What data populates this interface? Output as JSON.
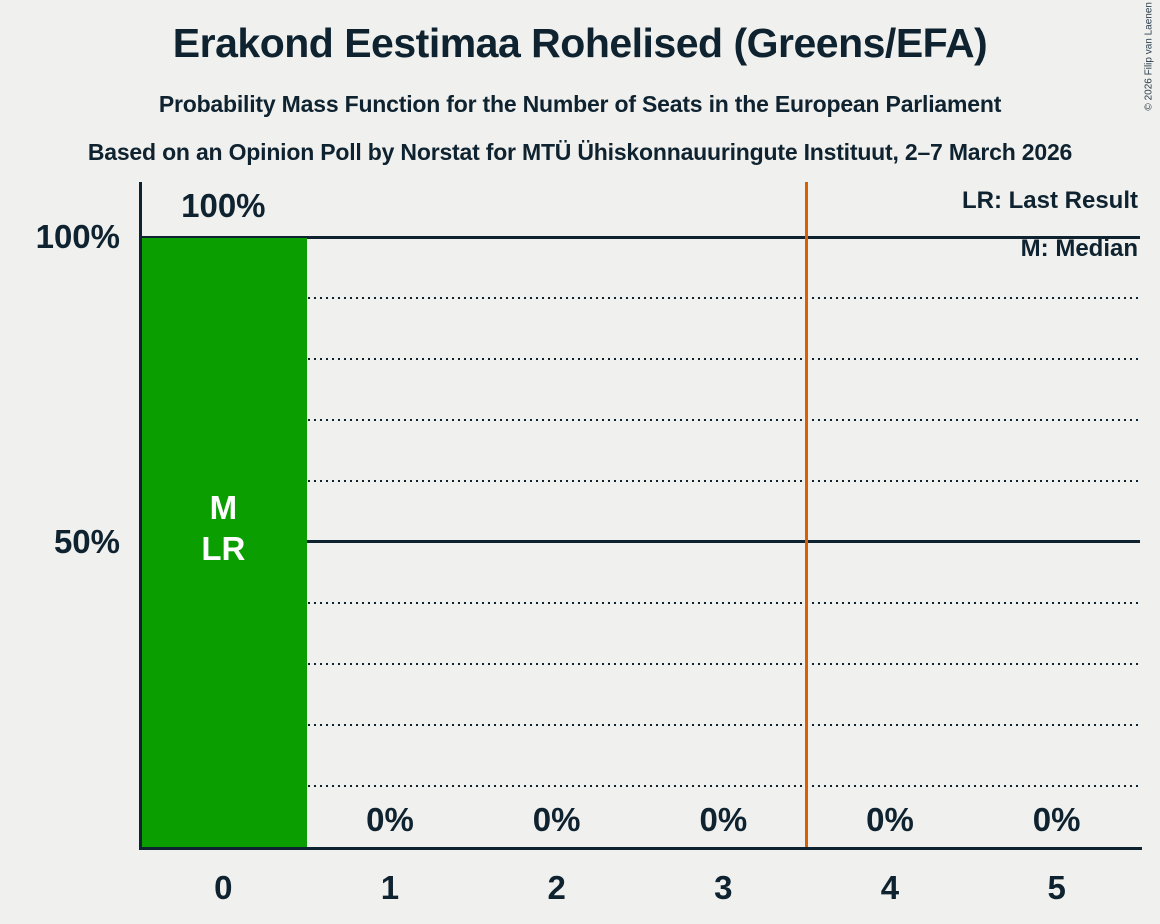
{
  "header": {
    "title": "Erakond Eestimaa Rohelised (Greens/EFA)",
    "subtitle1": "Probability Mass Function for the Number of Seats in the European Parliament",
    "subtitle2": "Based on an Opinion Poll by Norstat for MTÜ Ühiskonnauuringute Instituut, 2–7 March 2026",
    "copyright": "© 2026 Filip van Laenen"
  },
  "legend": {
    "last_result": "LR: Last Result",
    "median": "M: Median"
  },
  "chart_data": {
    "type": "bar",
    "title": "Probability Mass Function for the Number of Seats in the European Parliament",
    "categories": [
      "0",
      "1",
      "2",
      "3",
      "4",
      "5"
    ],
    "values": [
      100,
      0,
      0,
      0,
      0,
      0
    ],
    "value_labels": [
      "100%",
      "0%",
      "0%",
      "0%",
      "0%",
      "0%"
    ],
    "ylim": [
      0,
      100
    ],
    "y_ticks": [
      {
        "value": 100,
        "label": "100%"
      },
      {
        "value": 50,
        "label": "50%"
      }
    ],
    "solid_gridlines": [
      100,
      50
    ],
    "dotted_gridlines": [
      90,
      80,
      70,
      60,
      40,
      30,
      20,
      10
    ],
    "bar_annotation": {
      "category": "0",
      "lines": [
        "M",
        "LR"
      ]
    },
    "median_seats": 0,
    "last_result_seats": 0,
    "threshold_line_x": 3.5,
    "grid": "horizontal",
    "legend_position": "top-right",
    "colors": {
      "bar": "#0a9e01",
      "threshold_line": "#d95f00",
      "text": "#0e222f",
      "annotation_text": "#ffffff",
      "background": "#f0f0ee"
    }
  }
}
